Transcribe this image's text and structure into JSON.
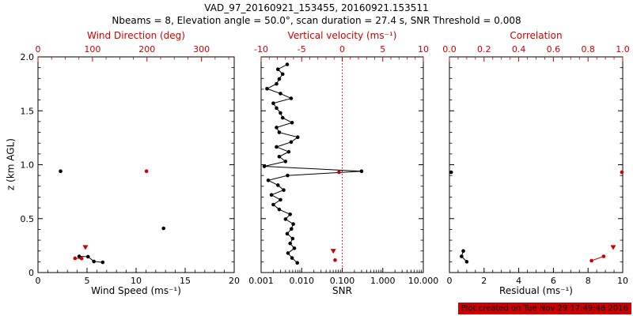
{
  "title": "VAD_97_20160921_153455, 20160921.153511",
  "subtitle": "Nbeams = 8, Elevation angle = 50.0°, scan duration = 27.4 s, SNR Threshold = 0.008",
  "footer": "Plot created on Tue Nov 29 17:49:48 2016",
  "colors": {
    "accent": "#cc0000",
    "foreground": "#000000",
    "background": "#ffffff"
  },
  "y_axis": {
    "label": "z (km AGL)",
    "min": 0,
    "max": 2,
    "ticks": [
      0,
      0.5,
      1,
      1.5,
      2
    ],
    "tick_labels": [
      "0",
      "0.5",
      "1.0",
      "1.5",
      "2.0"
    ],
    "minor_per_major": 5
  },
  "chart_data": [
    {
      "id": "wind",
      "type": "scatter",
      "x_axis": {
        "label": "Wind Speed (ms⁻¹)",
        "scale": "linear",
        "min": 0,
        "max": 20,
        "ticks": [
          0,
          5,
          10,
          15,
          20
        ],
        "tick_labels": [
          "0",
          "5",
          "10",
          "15",
          "20"
        ],
        "minor_per_major": 5
      },
      "top_axis": {
        "label": "Wind Direction (deg)",
        "scale": "linear",
        "min": 0,
        "max": 360,
        "ticks": [
          0,
          100,
          200,
          300
        ],
        "tick_labels": [
          "0",
          "100",
          "200",
          "300"
        ],
        "minor_per_major": 4
      },
      "series": [
        {
          "name": "wind-speed",
          "axis": "bottom",
          "color": "#000000",
          "marker": "circle",
          "segments": [
            [
              [
                2.3,
                0.94
              ]
            ],
            [
              [
                12.8,
                0.41
              ]
            ],
            [
              [
                4.2,
                0.15
              ],
              [
                5.1,
                0.147
              ],
              [
                5.7,
                0.103
              ],
              [
                6.6,
                0.095
              ]
            ]
          ]
        },
        {
          "name": "wind-direction",
          "axis": "top",
          "color": "#cc0000",
          "marker": "circle",
          "segments": [
            [
              [
                199,
                0.94
              ]
            ],
            [
              [
                68,
                0.132
              ],
              [
                80,
                0.13
              ]
            ]
          ]
        },
        {
          "name": "wind-direction-flagged",
          "axis": "top",
          "color": "#cc0000",
          "marker": "triangle-down",
          "segments": [
            [
              [
                87,
                0.235
              ]
            ]
          ]
        }
      ]
    },
    {
      "id": "snr",
      "type": "line",
      "x_axis": {
        "label": "SNR",
        "scale": "log",
        "min": 0.001,
        "max": 10,
        "ticks": [
          0.001,
          0.01,
          0.1,
          1,
          10
        ],
        "tick_labels": [
          "0.001",
          "0.010",
          "0.100",
          "1.000",
          "10.000"
        ]
      },
      "top_axis": {
        "label": "Vertical velocity (ms⁻¹)",
        "scale": "linear",
        "min": -10,
        "max": 10,
        "ticks": [
          -10,
          -5,
          0,
          5,
          10
        ],
        "tick_labels": [
          "-10",
          "-5",
          "0",
          "5",
          "10"
        ],
        "minor_per_major": 5
      },
      "refline_top": {
        "value": 0,
        "style": "dotted",
        "color": "#cc0000"
      },
      "series": [
        {
          "name": "snr-profile",
          "axis": "bottom",
          "color": "#000000",
          "marker": "circle",
          "segments": [
            [
              [
                0.0078,
                0.09
              ],
              [
                0.0058,
                0.135
              ],
              [
                0.0046,
                0.18
              ],
              [
                0.0066,
                0.225
              ],
              [
                0.0052,
                0.27
              ],
              [
                0.006,
                0.315
              ],
              [
                0.0044,
                0.36
              ],
              [
                0.0056,
                0.405
              ],
              [
                0.0062,
                0.45
              ],
              [
                0.004,
                0.495
              ],
              [
                0.0052,
                0.54
              ],
              [
                0.0028,
                0.585
              ],
              [
                0.002,
                0.63
              ],
              [
                0.003,
                0.675
              ],
              [
                0.0018,
                0.72
              ],
              [
                0.0036,
                0.765
              ],
              [
                0.0026,
                0.81
              ],
              [
                0.0015,
                0.855
              ],
              [
                0.0045,
                0.9
              ],
              [
                0.3,
                0.94
              ],
              [
                0.0012,
                0.985
              ],
              [
                0.004,
                1.03
              ],
              [
                0.0028,
                1.075
              ],
              [
                0.0048,
                1.12
              ],
              [
                0.0024,
                1.165
              ],
              [
                0.0055,
                1.21
              ],
              [
                0.008,
                1.255
              ],
              [
                0.0028,
                1.3
              ],
              [
                0.0024,
                1.345
              ],
              [
                0.0058,
                1.39
              ],
              [
                0.0034,
                1.435
              ],
              [
                0.003,
                1.48
              ],
              [
                0.0024,
                1.525
              ],
              [
                0.002,
                1.57
              ],
              [
                0.0055,
                1.615
              ],
              [
                0.003,
                1.66
              ],
              [
                0.0014,
                1.705
              ],
              [
                0.0024,
                1.75
              ],
              [
                0.0028,
                1.795
              ],
              [
                0.0034,
                1.84
              ],
              [
                0.0026,
                1.885
              ],
              [
                0.0044,
                1.93
              ]
            ]
          ]
        },
        {
          "name": "vertical-velocity",
          "axis": "top",
          "color": "#cc0000",
          "marker": "circle",
          "segments": [
            [
              [
                -0.4,
                0.93
              ]
            ],
            [
              [
                -0.88,
                0.115
              ]
            ]
          ]
        },
        {
          "name": "vertical-velocity-flagged",
          "axis": "top",
          "color": "#cc0000",
          "marker": "triangle-down",
          "segments": [
            [
              [
                -1.1,
                0.2
              ]
            ]
          ]
        }
      ]
    },
    {
      "id": "residual",
      "type": "scatter",
      "x_axis": {
        "label": "Residual (ms⁻¹)",
        "scale": "linear",
        "min": 0,
        "max": 10,
        "ticks": [
          0,
          2,
          4,
          6,
          8,
          10
        ],
        "tick_labels": [
          "0",
          "2",
          "4",
          "6",
          "8",
          "10"
        ],
        "minor_per_major": 4
      },
      "top_axis": {
        "label": "Correlation",
        "scale": "linear",
        "min": 0,
        "max": 1,
        "ticks": [
          0,
          0.2,
          0.4,
          0.6,
          0.8,
          1
        ],
        "tick_labels": [
          "0.0",
          "0.2",
          "0.4",
          "0.6",
          "0.8",
          "1.0"
        ],
        "minor_per_major": 4
      },
      "series": [
        {
          "name": "residual",
          "axis": "bottom",
          "color": "#000000",
          "marker": "circle",
          "segments": [
            [
              [
                0.1,
                0.93
              ]
            ],
            [
              [
                0.8,
                0.2
              ],
              [
                0.7,
                0.15
              ],
              [
                1.0,
                0.1
              ]
            ]
          ]
        },
        {
          "name": "correlation",
          "axis": "top",
          "color": "#cc0000",
          "marker": "circle",
          "segments": [
            [
              [
                0.995,
                0.93
              ]
            ],
            [
              [
                0.89,
                0.15
              ],
              [
                0.82,
                0.11
              ]
            ]
          ]
        },
        {
          "name": "correlation-flagged",
          "axis": "top",
          "color": "#cc0000",
          "marker": "triangle-down",
          "segments": [
            [
              [
                0.945,
                0.235
              ]
            ]
          ]
        }
      ]
    }
  ]
}
